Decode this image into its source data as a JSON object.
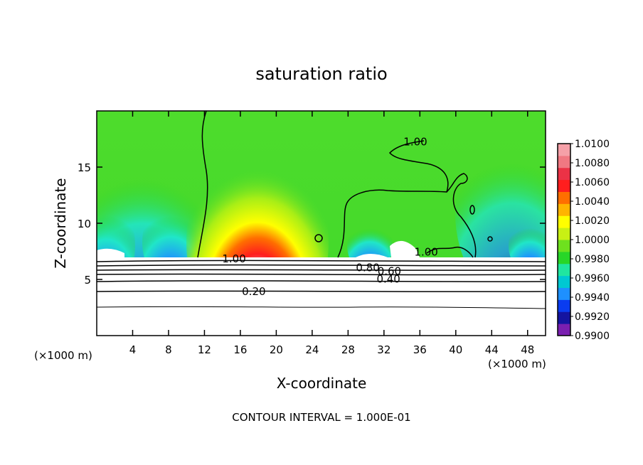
{
  "chart_data": {
    "type": "heatmap",
    "title": "saturation ratio",
    "xlabel": "X-coordinate",
    "ylabel": "Z-coordinate",
    "x_unit": "(×1000 m)",
    "footer": "CONTOUR INTERVAL = 1.000E-01",
    "xlim": [
      0,
      50
    ],
    "ylim": [
      0,
      20
    ],
    "x_ticks": [
      "4",
      "8",
      "12",
      "16",
      "20",
      "24",
      "28",
      "32",
      "36",
      "40",
      "44",
      "48"
    ],
    "x_tick_values": [
      4,
      8,
      12,
      16,
      20,
      24,
      28,
      32,
      36,
      40,
      44,
      48
    ],
    "y_ticks": [
      "5",
      "10",
      "15"
    ],
    "y_tick_values": [
      5,
      10,
      15
    ],
    "colorbar": {
      "range": [
        0.99,
        1.01
      ],
      "labels": [
        "1.0100",
        "1.0080",
        "1.0060",
        "1.0040",
        "1.0020",
        "1.0000",
        "0.9980",
        "0.9960",
        "0.9940",
        "0.9920",
        "0.9900"
      ],
      "label_values": [
        1.01,
        1.008,
        1.006,
        1.004,
        1.002,
        1.0,
        0.998,
        0.996,
        0.994,
        0.992,
        0.99
      ],
      "colors": [
        "#7a1fb0",
        "#1414a0",
        "#0a3cf0",
        "#1e90ff",
        "#00c8d2",
        "#20e6a0",
        "#28d628",
        "#6ee11e",
        "#c8f014",
        "#ffff00",
        "#ffb400",
        "#ff6e00",
        "#ff1e1e",
        "#eb3246",
        "#f07882",
        "#f5a0a8"
      ]
    },
    "contour_labels": [
      {
        "text": "1.00",
        "x": 15.3,
        "z": 6.9
      },
      {
        "text": "1.00",
        "x": 36.7,
        "z": 7.5
      },
      {
        "text": "1.00",
        "x": 35.5,
        "z": 17.3
      },
      {
        "text": "0.80",
        "x": 30.2,
        "z": 6.1
      },
      {
        "text": "0.60",
        "x": 32.6,
        "z": 5.8
      },
      {
        "text": "0.40",
        "x": 32.5,
        "z": 5.1
      },
      {
        "text": "0.20",
        "x": 17.5,
        "z": 4.0
      }
    ],
    "grid": false,
    "legend": "right colorbar"
  }
}
